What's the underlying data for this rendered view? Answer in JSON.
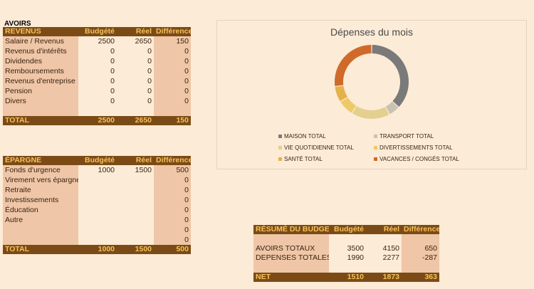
{
  "avoirs_title": "AVOIRS",
  "revenus": {
    "headers": [
      "REVENUS",
      "Budgété",
      "Réel",
      "Différence"
    ],
    "rows": [
      {
        "label": "Salaire / Revenus",
        "budget": "2500",
        "reel": "2650",
        "diff": "150"
      },
      {
        "label": "Revenus d'intérêts",
        "budget": "0",
        "reel": "0",
        "diff": "0"
      },
      {
        "label": "Dividendes",
        "budget": "0",
        "reel": "0",
        "diff": "0"
      },
      {
        "label": "Remboursements",
        "budget": "0",
        "reel": "0",
        "diff": "0"
      },
      {
        "label": "Revenus d'entreprise",
        "budget": "0",
        "reel": "0",
        "diff": "0"
      },
      {
        "label": "Pension",
        "budget": "0",
        "reel": "0",
        "diff": "0"
      },
      {
        "label": "Divers",
        "budget": "0",
        "reel": "0",
        "diff": "0"
      }
    ],
    "total": {
      "label": "TOTAL",
      "budget": "2500",
      "reel": "2650",
      "diff": "150"
    }
  },
  "epargne": {
    "headers": [
      "ÉPARGNE",
      "Budgété",
      "Réel",
      "Différence"
    ],
    "rows": [
      {
        "label": "Fonds d'urgence",
        "budget": "1000",
        "reel": "1500",
        "diff": "500"
      },
      {
        "label": "Virement vers épargne",
        "budget": "",
        "reel": "",
        "diff": "0"
      },
      {
        "label": "Retraite",
        "budget": "",
        "reel": "",
        "diff": "0"
      },
      {
        "label": "Investissements",
        "budget": "",
        "reel": "",
        "diff": "0"
      },
      {
        "label": "Éducation",
        "budget": "",
        "reel": "",
        "diff": "0"
      },
      {
        "label": "Autre",
        "budget": "",
        "reel": "",
        "diff": "0"
      },
      {
        "label": "",
        "budget": "",
        "reel": "",
        "diff": "0"
      },
      {
        "label": "",
        "budget": "",
        "reel": "",
        "diff": "0"
      }
    ],
    "total": {
      "label": "TOTAL",
      "budget": "1000",
      "reel": "1500",
      "diff": "500"
    }
  },
  "resume": {
    "headers": [
      "RÉSUMÉ DU BUDGET",
      "Budgété",
      "Réel",
      "Différence"
    ],
    "rows": [
      {
        "label": "AVOIRS TOTAUX",
        "budget": "3500",
        "reel": "4150",
        "diff": "650"
      },
      {
        "label": "DEPENSES TOTALES",
        "budget": "1990",
        "reel": "2277",
        "diff": "-287"
      }
    ],
    "total": {
      "label": "NET",
      "budget": "1510",
      "reel": "1873",
      "diff": "363"
    }
  },
  "chart_data": {
    "type": "pie",
    "title": "Dépenses du mois",
    "donut": true,
    "series": [
      {
        "name": "MAISON TOTAL",
        "value": 37,
        "color": "#7a7a7a"
      },
      {
        "name": "TRANSPORT TOTAL",
        "value": 5,
        "color": "#c9c2b1"
      },
      {
        "name": "VIE QUOTIDIENNE TOTAL",
        "value": 17,
        "color": "#e3d08e"
      },
      {
        "name": "DIVERTISSEMENTS TOTAL",
        "value": 7,
        "color": "#eec96a"
      },
      {
        "name": "SANTÉ TOTAL",
        "value": 7,
        "color": "#e6b04a"
      },
      {
        "name": "VACANCES / CONGÉS TOTAL",
        "value": 27,
        "color": "#cf6a2a"
      }
    ],
    "legend_position": "bottom"
  }
}
